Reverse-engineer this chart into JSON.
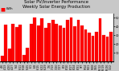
{
  "title_line1": "Solar PV/Inverter Performance",
  "title_line2": "Weekly Solar Energy Production",
  "title_fontsize": 3.8,
  "bar_color": "#ff0000",
  "bar_edge_color": "#dd0000",
  "bg_color": "#c8c8c8",
  "plot_bg_color": "#ffffff",
  "tick_fontsize": 2.5,
  "xlabel_fontsize": 2.3,
  "grid_color": "#aaaaaa",
  "values": [
    6,
    42,
    14,
    43,
    39,
    42,
    7,
    15,
    43,
    50,
    41,
    49,
    38,
    44,
    47,
    43,
    41,
    38,
    47,
    50,
    40,
    47,
    41,
    36,
    33,
    29,
    34,
    49,
    30,
    28,
    34
  ],
  "dates": [
    "4/6",
    "4/13",
    "4/20",
    "4/27",
    "5/4",
    "5/11",
    "5/18",
    "5/25",
    "6/1",
    "6/8",
    "6/15",
    "6/22",
    "6/29",
    "7/6",
    "7/13",
    "7/20",
    "7/27",
    "8/3",
    "8/10",
    "8/17",
    "8/24",
    "8/31",
    "9/7",
    "9/14",
    "9/21",
    "9/28",
    "10/5",
    "10/12",
    "10/19",
    "10/26",
    "11/2"
  ],
  "ylim": [
    0,
    55
  ],
  "yticks": [
    10,
    20,
    30,
    40,
    50
  ],
  "ytick_labels": [
    "10",
    "20",
    "30",
    "40",
    "50"
  ],
  "legend_label": "kWh",
  "legend_fontsize": 2.8
}
